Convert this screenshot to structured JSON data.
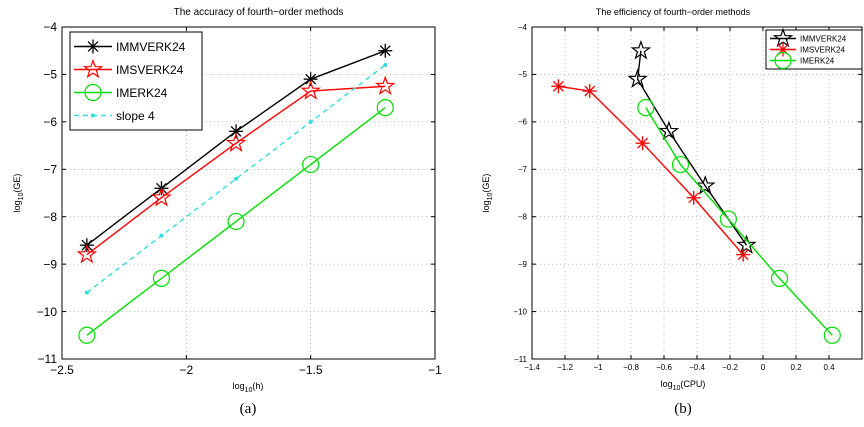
{
  "chart_data": [
    {
      "type": "line",
      "title": "The accuracy of fourth−order methods",
      "xlabel": {
        "base": "log",
        "sub": "10",
        "arg": "(h)"
      },
      "ylabel": {
        "base": "log",
        "sub": "10",
        "arg": "(GE)"
      },
      "xlim": [
        -2.5,
        -1
      ],
      "ylim": [
        -11,
        -4
      ],
      "xticks": [
        -2.5,
        -2,
        -1.5,
        -1
      ],
      "xtick_labels": [
        "−2.5",
        "−2",
        "−1.5",
        "−1"
      ],
      "yticks": [
        -11,
        -10,
        -9,
        -8,
        -7,
        -6,
        -5,
        -4
      ],
      "ytick_labels": [
        "−11",
        "−10",
        "−9",
        "−8",
        "−7",
        "−6",
        "−5",
        "−4"
      ],
      "grid": true,
      "legend_position": "top-left",
      "caption": "(a)",
      "series": [
        {
          "name": "IMMVERK24",
          "color": "#000000",
          "marker": "asterisk",
          "dashed": false,
          "x": [
            -2.4,
            -2.1,
            -1.8,
            -1.5,
            -1.2
          ],
          "y": [
            -8.6,
            -7.4,
            -6.2,
            -5.1,
            -4.5
          ]
        },
        {
          "name": "IMSVERK24",
          "color": "#ff0000",
          "marker": "star",
          "dashed": false,
          "x": [
            -2.4,
            -2.1,
            -1.8,
            -1.5,
            -1.2
          ],
          "y": [
            -8.8,
            -7.6,
            -6.45,
            -5.35,
            -5.25
          ]
        },
        {
          "name": "IMERK24",
          "color": "#00dd00",
          "marker": "circle",
          "dashed": false,
          "x": [
            -2.4,
            -2.1,
            -1.8,
            -1.5,
            -1.2
          ],
          "y": [
            -10.5,
            -9.3,
            -8.1,
            -6.9,
            -5.7
          ]
        },
        {
          "name": "slope 4",
          "color": "#33dddd",
          "marker": "dot",
          "dashed": true,
          "x": [
            -2.4,
            -2.1,
            -1.8,
            -1.5,
            -1.2
          ],
          "y": [
            -9.6,
            -8.4,
            -7.2,
            -6.0,
            -4.8
          ]
        }
      ]
    },
    {
      "type": "line",
      "title": "The efficiency of fourth−order methods",
      "xlabel": {
        "base": "log",
        "sub": "10",
        "arg": "(CPU)"
      },
      "ylabel": {
        "base": "log",
        "sub": "10",
        "arg": "(GE)"
      },
      "xlim": [
        -1.4,
        0.6
      ],
      "ylim": [
        -11,
        -4
      ],
      "xticks": [
        -1.4,
        -1.2,
        -1,
        -0.8,
        -0.6,
        -0.4,
        -0.2,
        0,
        0.2,
        0.4
      ],
      "xtick_labels": [
        "−1.4",
        "−1.2",
        "−1",
        "−0.8",
        "−0.6",
        "−0.4",
        "−0.2",
        "0",
        "0.2",
        "0.4"
      ],
      "yticks": [
        -11,
        -10,
        -9,
        -8,
        -7,
        -6,
        -5,
        -4
      ],
      "ytick_labels": [
        "−11",
        "−10",
        "−9",
        "−8",
        "−7",
        "−6",
        "−5",
        "−4"
      ],
      "grid": true,
      "legend_position": "top-right",
      "caption": "(b)",
      "series": [
        {
          "name": "IMMVERK24",
          "color": "#000000",
          "marker": "star",
          "x": [
            -0.1,
            -0.35,
            -0.57,
            -0.76,
            -0.74
          ],
          "y": [
            -8.6,
            -7.35,
            -6.2,
            -5.1,
            -4.5
          ]
        },
        {
          "name": "IMSVERK24",
          "color": "#ff0000",
          "marker": "asterisk",
          "x": [
            -0.12,
            -0.42,
            -0.73,
            -1.05,
            -1.24
          ],
          "y": [
            -8.8,
            -7.6,
            -6.45,
            -5.35,
            -5.25
          ]
        },
        {
          "name": "IMERK24",
          "color": "#00dd00",
          "marker": "circle",
          "x": [
            0.42,
            0.1,
            -0.21,
            -0.5,
            -0.71
          ],
          "y": [
            -10.5,
            -9.3,
            -8.05,
            -6.9,
            -5.7
          ]
        }
      ]
    }
  ]
}
